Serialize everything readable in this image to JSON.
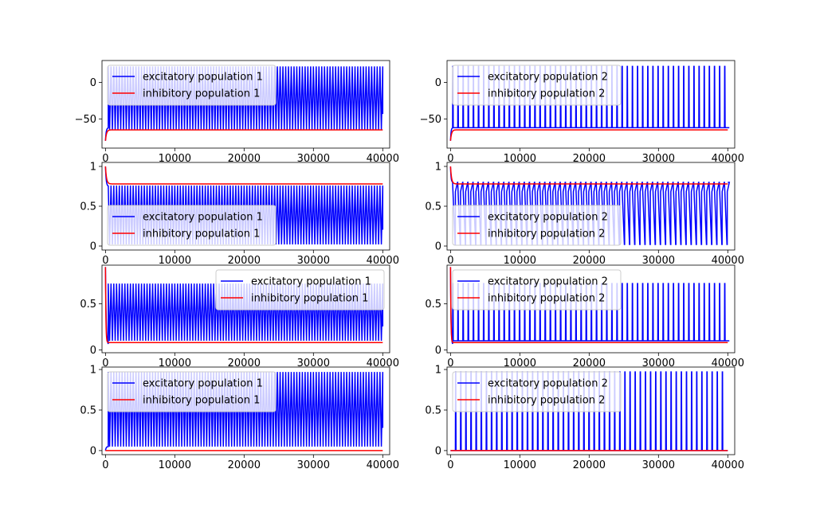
{
  "chart_data": [
    {
      "type": "line",
      "row": 0,
      "col": 0,
      "xlim": [
        -500,
        41000
      ],
      "ylim": [
        -90,
        30
      ],
      "xticks": [
        0,
        10000,
        20000,
        30000,
        40000
      ],
      "yticks": [
        0,
        -50
      ],
      "legend": "upper-left",
      "series": [
        {
          "name": "excitatory population 1",
          "color": "#0000ff",
          "pattern": "burst",
          "start": -80,
          "rest": -62,
          "low": -65,
          "high": 22,
          "t_on": 400,
          "period": 400
        },
        {
          "name": "inhibitory population 1",
          "color": "#ff0000",
          "pattern": "decay",
          "start": -80,
          "rest": -65,
          "tau": 150
        }
      ]
    },
    {
      "type": "line",
      "row": 0,
      "col": 1,
      "xlim": [
        -500,
        41000
      ],
      "ylim": [
        -90,
        30
      ],
      "xticks": [
        0,
        10000,
        20000,
        30000,
        40000
      ],
      "yticks": [
        0,
        -50
      ],
      "legend": "upper-left",
      "series": [
        {
          "name": "excitatory population 2",
          "color": "#0000ff",
          "pattern": "spikes",
          "start": -80,
          "rest": -62,
          "low": -62,
          "high": 22,
          "t_on": 300,
          "period": 740,
          "width": 240
        },
        {
          "name": "inhibitory population 2",
          "color": "#ff0000",
          "pattern": "decay",
          "start": -80,
          "rest": -65,
          "tau": 150
        }
      ]
    },
    {
      "type": "line",
      "row": 1,
      "col": 0,
      "xlim": [
        -500,
        41000
      ],
      "ylim": [
        -0.05,
        1.05
      ],
      "xticks": [
        0,
        10000,
        20000,
        30000,
        40000
      ],
      "yticks": [
        0.0,
        0.5,
        1.0
      ],
      "legend": "lower-left",
      "series": [
        {
          "name": "excitatory population 1",
          "color": "#0000ff",
          "pattern": "burst",
          "start": 1.0,
          "rest": 0.75,
          "low": 0.02,
          "high": 0.76,
          "t_on": 400,
          "period": 400
        },
        {
          "name": "inhibitory population 1",
          "color": "#ff0000",
          "pattern": "decay",
          "start": 1.0,
          "rest": 0.78,
          "tau": 150
        }
      ]
    },
    {
      "type": "line",
      "row": 1,
      "col": 1,
      "xlim": [
        -500,
        41000
      ],
      "ylim": [
        -0.05,
        1.05
      ],
      "xticks": [
        0,
        10000,
        20000,
        30000,
        40000
      ],
      "yticks": [
        0.0,
        0.5,
        1.0
      ],
      "legend": "lower-left",
      "series": [
        {
          "name": "excitatory population 2",
          "color": "#0000ff",
          "pattern": "dips",
          "start": 1.0,
          "rest": 0.8,
          "low": 0.02,
          "high": 0.8,
          "t_on": 300,
          "period": 740,
          "width": 380
        },
        {
          "name": "inhibitory population 2",
          "color": "#ff0000",
          "pattern": "decay",
          "start": 1.0,
          "rest": 0.78,
          "tau": 150
        }
      ]
    },
    {
      "type": "line",
      "row": 2,
      "col": 0,
      "xlim": [
        -500,
        41000
      ],
      "ylim": [
        -0.03,
        0.92
      ],
      "xticks": [
        0,
        10000,
        20000,
        30000,
        40000
      ],
      "yticks": [
        0.0,
        0.5
      ],
      "legend": "upper-right",
      "series": [
        {
          "name": "excitatory population 1",
          "color": "#0000ff",
          "pattern": "burst",
          "start": 0.9,
          "rest": 0.1,
          "low": 0.1,
          "high": 0.72,
          "t_on": 400,
          "period": 400,
          "dip": 0.05
        },
        {
          "name": "inhibitory population 1",
          "color": "#ff0000",
          "pattern": "peak",
          "start": 0.9,
          "rest": 0.08,
          "tau": 60
        }
      ]
    },
    {
      "type": "line",
      "row": 2,
      "col": 1,
      "xlim": [
        -500,
        41000
      ],
      "ylim": [
        -0.03,
        0.92
      ],
      "xticks": [
        0,
        10000,
        20000,
        30000,
        40000
      ],
      "yticks": [
        0.0,
        0.5
      ],
      "legend": "upper-left",
      "series": [
        {
          "name": "excitatory population 2",
          "color": "#0000ff",
          "pattern": "spikes",
          "start": 0.9,
          "rest": 0.1,
          "low": 0.1,
          "high": 0.72,
          "t_on": 300,
          "period": 740,
          "width": 240,
          "dip": 0.05
        },
        {
          "name": "inhibitory population 2",
          "color": "#ff0000",
          "pattern": "peak",
          "start": 0.9,
          "rest": 0.08,
          "tau": 60
        }
      ]
    },
    {
      "type": "line",
      "row": 3,
      "col": 0,
      "xlim": [
        -500,
        41000
      ],
      "ylim": [
        -0.05,
        1.03
      ],
      "xticks": [
        0,
        10000,
        20000,
        30000,
        40000
      ],
      "yticks": [
        0.0,
        0.5,
        1.0
      ],
      "legend": "upper-left",
      "series": [
        {
          "name": "excitatory population 1",
          "color": "#0000ff",
          "pattern": "burst",
          "start": 0.0,
          "rest": 0.05,
          "low": 0.05,
          "high": 0.97,
          "t_on": 400,
          "period": 400
        },
        {
          "name": "inhibitory population 1",
          "color": "#ff0000",
          "pattern": "flat",
          "start": 0.0,
          "rest": 0.0
        }
      ]
    },
    {
      "type": "line",
      "row": 3,
      "col": 1,
      "xlim": [
        -500,
        41000
      ],
      "ylim": [
        -0.05,
        1.03
      ],
      "xticks": [
        0,
        10000,
        20000,
        30000,
        40000
      ],
      "yticks": [
        0.0,
        0.5,
        1.0
      ],
      "legend": "upper-left",
      "series": [
        {
          "name": "excitatory population 2",
          "color": "#0000ff",
          "pattern": "spikes",
          "start": 0.0,
          "rest": 0.0,
          "low": 0.0,
          "high": 0.97,
          "t_on": 700,
          "period": 740,
          "width": 240
        },
        {
          "name": "inhibitory population 2",
          "color": "#ff0000",
          "pattern": "flat",
          "start": 0.0,
          "rest": 0.0
        }
      ]
    }
  ]
}
